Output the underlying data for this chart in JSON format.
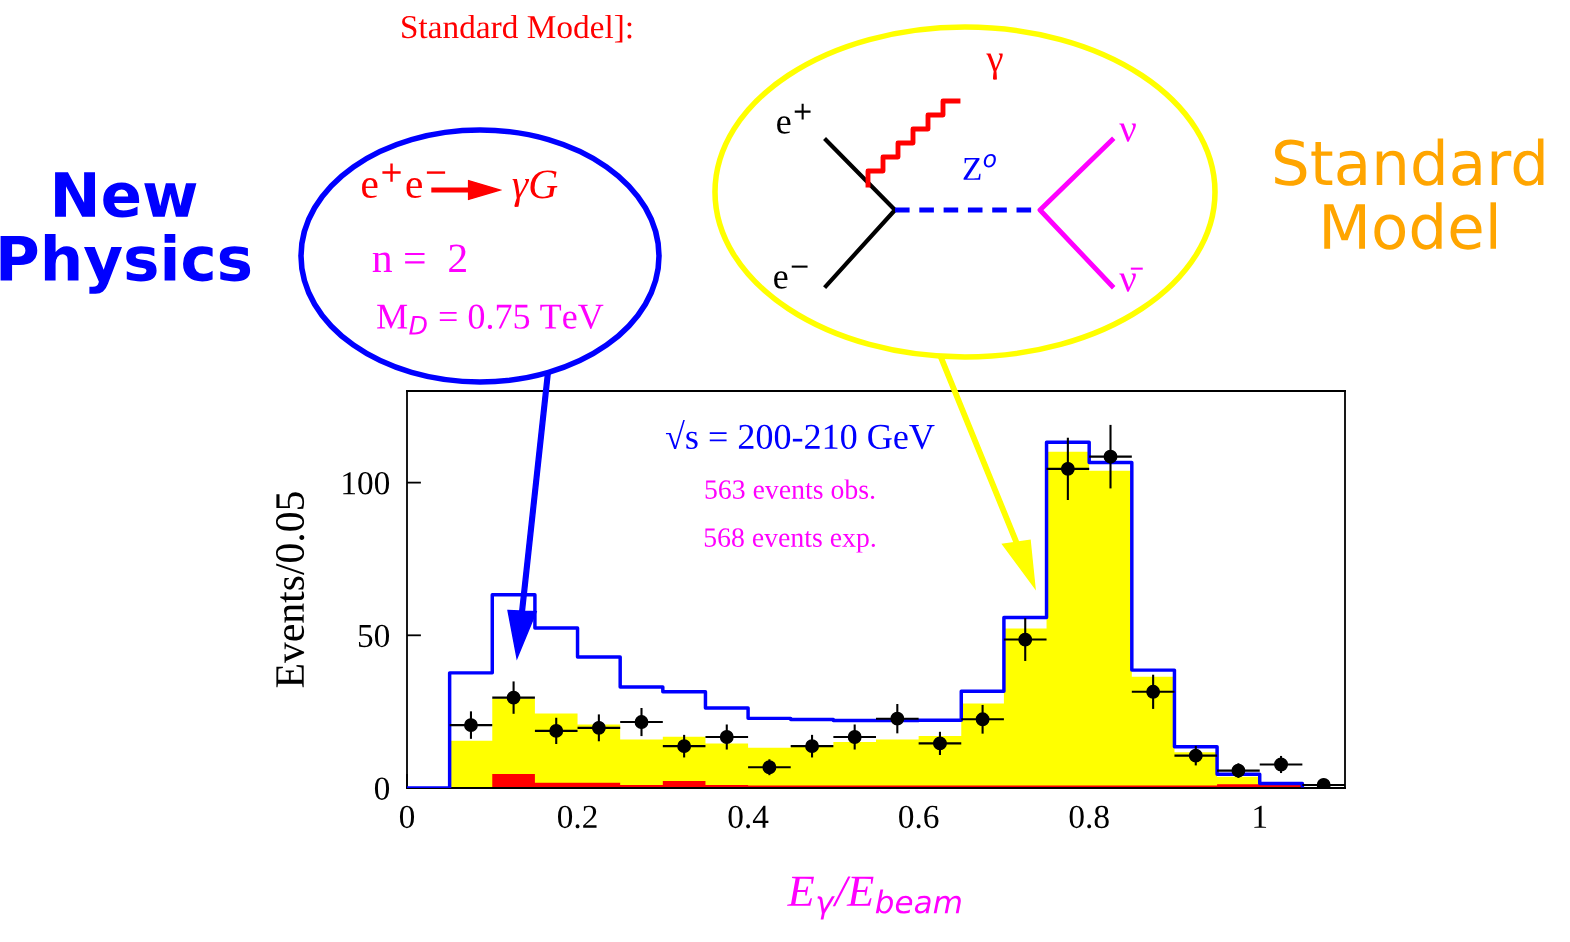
{
  "chart_data": {
    "type": "histogram",
    "xlabel": "E$_{γ}$/E$_{beam}$",
    "ylabel": "Events/0.05",
    "bins": [
      0.05,
      0.1,
      0.15,
      0.2,
      0.25,
      0.3,
      0.35,
      0.4,
      0.45,
      0.5,
      0.55,
      0.6,
      0.65,
      0.7,
      0.75,
      0.8,
      0.85,
      0.9,
      0.95,
      1.0,
      1.05,
      1.1
    ],
    "series": [
      {
        "type": "step",
        "color": "#0000ff",
        "x": [
          0,
          0.05,
          0.1,
          0.15,
          0.2,
          0.25,
          0.3,
          0.35,
          0.4,
          0.45,
          0.5,
          0.55,
          0.6,
          0.65,
          0.7,
          0.75,
          0.8,
          0.85,
          0.9,
          0.95,
          1.0,
          1.05
        ],
        "values": [
          0,
          37.7,
          63.3,
          52.4,
          42.9,
          33.1,
          31.5,
          26.2,
          22.8,
          22.4,
          22.1,
          22.1,
          22.2,
          31.7,
          55.8,
          113.2,
          106.6,
          38.6,
          13.5,
          4.5,
          1.5,
          0.7
        ]
      },
      {
        "color": "#ffff00",
        "values": [
          15.5,
          29.3,
          24.4,
          20.8,
          15.9,
          16.8,
          14.6,
          13.2,
          14.0,
          15.1,
          15.9,
          17.0,
          27.7,
          52.2,
          110.1,
          103.9,
          36.4,
          11.7,
          3.7,
          1.0,
          0.3
        ]
      },
      {
        "color": "#ff0000",
        "values": [
          0,
          4.6,
          1.7,
          1.7,
          1.0,
          2.3,
          1.0,
          0.8,
          0.8,
          0.8,
          0.8,
          0.8,
          0.8,
          0.8,
          0.8,
          0.8,
          0.8,
          0.8,
          1.2,
          1.2,
          0.3
        ]
      },
      {
        "type": "scatter",
        "color": "#000000",
        "x": [
          0.075,
          0.125,
          0.175,
          0.225,
          0.275,
          0.325,
          0.375,
          0.425,
          0.475,
          0.525,
          0.575,
          0.625,
          0.675,
          0.725,
          0.775,
          0.825,
          0.875,
          0.925,
          0.975,
          1.025,
          1.075
        ],
        "values": [
          20.6,
          29.6,
          18.7,
          19.7,
          21.6,
          13.7,
          16.7,
          6.8,
          13.7,
          16.7,
          22.7,
          14.6,
          22.5,
          48.6,
          104.5,
          108.5,
          31.5,
          10.6,
          5.7,
          7.7,
          1
        ],
        "errors": [
          4.5,
          5.3,
          4.3,
          4.4,
          4.6,
          3.7,
          4.1,
          2.6,
          3.7,
          4.1,
          4.8,
          3.8,
          4.7,
          7,
          10.2,
          10.4,
          5.6,
          3.2,
          2.4,
          2.8,
          1
        ],
        "xerrors": [
          0.025,
          0.025,
          0.025,
          0.025,
          0.025,
          0.025,
          0.025,
          0.025,
          0.025,
          0.025,
          0.025,
          0.025,
          0.025,
          0.025,
          0.025,
          0.025,
          0.025,
          0.025,
          0.025,
          0.025,
          0.025
        ]
      }
    ],
    "xlim": [
      0,
      1.1
    ],
    "ylim": [
      0,
      130
    ],
    "xticks": [
      0,
      0.2,
      0.4,
      0.6,
      0.8,
      1
    ],
    "yticks": [
      0,
      50,
      100
    ],
    "grid": false,
    "legend": false,
    "annotations": [
      "Standard Model]:",
      "New Physics",
      "e$^{+}$e$^{−}$",
      "γG",
      "n =  2",
      "M$_{D}$ = 0.75 TeV",
      "e$^{+}$",
      "e$^{−}$",
      "γ",
      "Z$^{o}$",
      "ν",
      "ν̄",
      "Standard Model",
      "√s = 200-210 GeV",
      "563 events obs.",
      "568 events exp."
    ]
  }
}
